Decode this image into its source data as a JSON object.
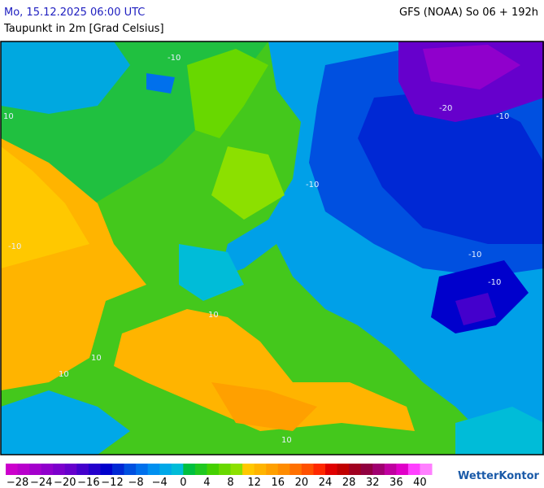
{
  "header": {
    "date": "Mo, 15.12.2025 06:00 UTC",
    "model": "GFS (NOAA) So 06 + 192h",
    "subtitle": "Taupunkt in 2m [Grad Celsius]"
  },
  "contour_labels": [
    "-10",
    "-20",
    "-10",
    "-10",
    "10",
    "-10",
    "10",
    "10",
    "-10",
    "10",
    "10",
    "-10"
  ],
  "colorbar": {
    "range": [
      -30,
      42
    ],
    "colors": [
      "#cc00cc",
      "#b800cc",
      "#a400cc",
      "#9000cc",
      "#7c00cc",
      "#6600cc",
      "#4400cc",
      "#2400cc",
      "#0000cc",
      "#0028d4",
      "#0050e0",
      "#0070ec",
      "#0090f0",
      "#00a8e8",
      "#00bcd8",
      "#00c040",
      "#20c820",
      "#44d000",
      "#68d800",
      "#8ce000",
      "#ffc800",
      "#ffb400",
      "#ffa000",
      "#ff8c00",
      "#ff7000",
      "#ff5000",
      "#ff2800",
      "#e00000",
      "#c00000",
      "#a00020",
      "#900040",
      "#a00070",
      "#c000a0",
      "#e000c8",
      "#ff40ff",
      "#ff80ff"
    ],
    "ticks": [
      {
        "value": -28,
        "label": "−28"
      },
      {
        "value": -24,
        "label": "−24"
      },
      {
        "value": -20,
        "label": "−20"
      },
      {
        "value": -16,
        "label": "−16"
      },
      {
        "value": -12,
        "label": "−12"
      },
      {
        "value": -8,
        "label": "−8"
      },
      {
        "value": -4,
        "label": "−4"
      },
      0,
      4,
      8,
      12,
      16,
      20,
      24,
      28,
      32,
      36,
      40
    ]
  },
  "logo": "WetterKontor"
}
